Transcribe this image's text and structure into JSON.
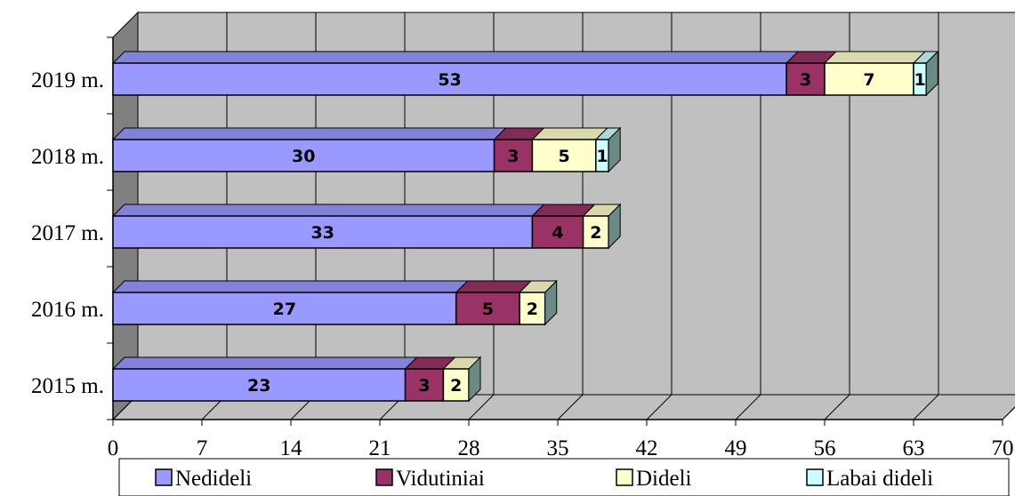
{
  "chart_data": {
    "type": "bar",
    "orientation": "horizontal",
    "stacked": true,
    "three_d": true,
    "categories": [
      "2015 m.",
      "2016 m.",
      "2017 m.",
      "2018 m.",
      "2019 m."
    ],
    "series": [
      {
        "name": "Nedideli",
        "color": "#9999ff",
        "values": [
          23,
          27,
          33,
          30,
          53
        ]
      },
      {
        "name": "Vidutiniai",
        "color": "#993366",
        "values": [
          3,
          5,
          4,
          3,
          3
        ]
      },
      {
        "name": "Dideli",
        "color": "#ffffcc",
        "values": [
          2,
          2,
          2,
          5,
          7
        ]
      },
      {
        "name": "Labai dideli",
        "color": "#ccffff",
        "values": [
          0,
          0,
          0,
          1,
          1
        ]
      }
    ],
    "xlim": [
      0,
      70
    ],
    "xticks": [
      "0",
      "7",
      "14",
      "21",
      "28",
      "35",
      "42",
      "49",
      "56",
      "63",
      "70"
    ],
    "grid": true,
    "legend_position": "bottom",
    "wall_color": "#c0c0c0",
    "side_wall_color": "#808080"
  }
}
